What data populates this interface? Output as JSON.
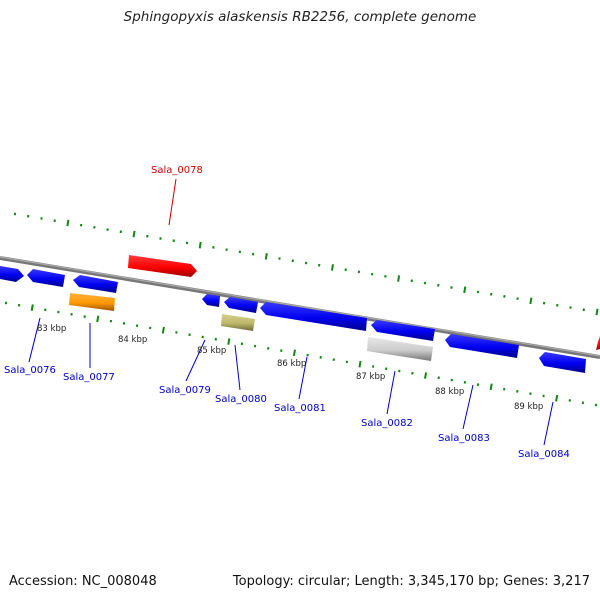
{
  "title": "Sphingopyxis alaskensis RB2256, complete genome",
  "footer": {
    "accession": "Accession: NC_008048",
    "summary": "Topology: circular; Length: 3,345,170 bp; Genes: 3,217"
  },
  "colors": {
    "highlight": "#ff0000",
    "gene": "#0000ff",
    "orange": "#ff9900",
    "olive": "#bdb76b",
    "grey": "#cccccc",
    "backbone": "#808080",
    "ticks": "#118811",
    "label_blue": "#0000cc",
    "label_red": "#cc0000"
  },
  "scale_labels": [
    "83 kbp",
    "84 kbp",
    "85 kbp",
    "86 kbp",
    "87 kbp",
    "88 kbp",
    "89 kbp"
  ],
  "genes": [
    {
      "name": "Sala_0076",
      "color": "blue"
    },
    {
      "name": "Sala_0077",
      "color": "orange"
    },
    {
      "name": "Sala_0078",
      "color": "red"
    },
    {
      "name": "Sala_0079",
      "color": "blue"
    },
    {
      "name": "Sala_0080",
      "color": "olive"
    },
    {
      "name": "Sala_0081",
      "color": "blue"
    },
    {
      "name": "Sala_0082",
      "color": "grey"
    },
    {
      "name": "Sala_0083",
      "color": "blue"
    },
    {
      "name": "Sala_0084",
      "color": "blue"
    }
  ]
}
